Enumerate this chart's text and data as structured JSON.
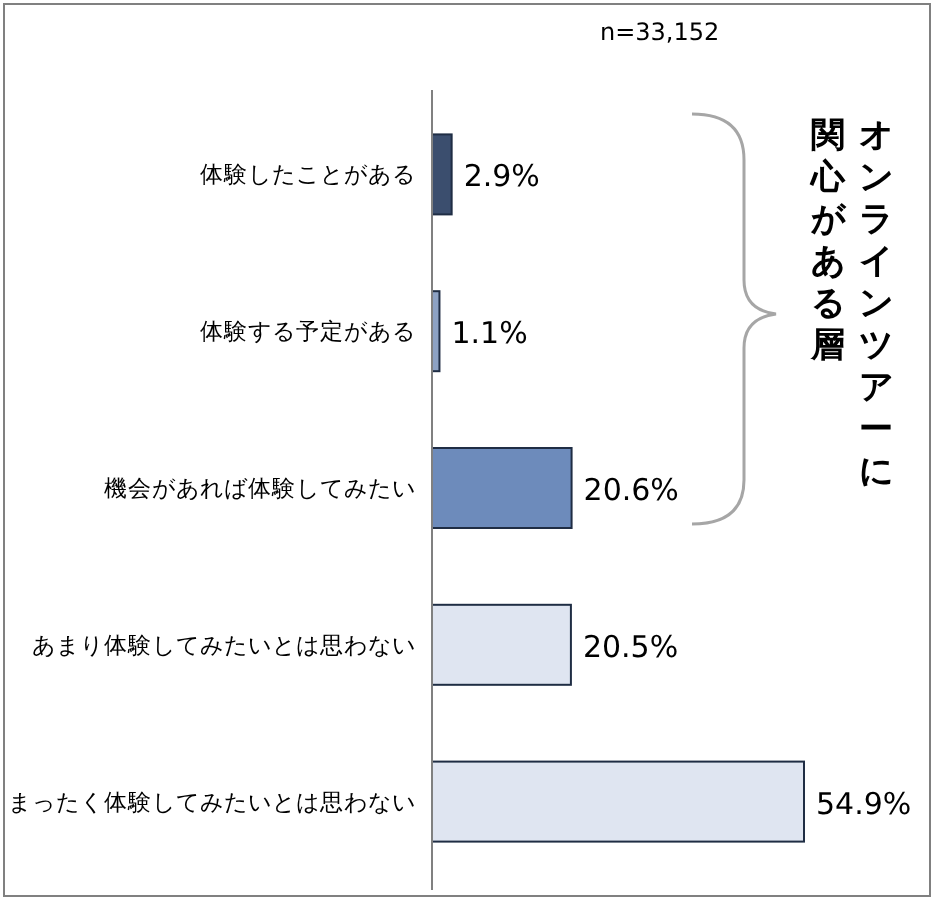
{
  "chart_data": {
    "type": "bar",
    "orientation": "horizontal",
    "categories": [
      "体験したことがある",
      "体験する予定がある",
      "機会があれば体験してみたい",
      "あまり体験してみたいとは思わない",
      "まったく体験してみたいとは思わない"
    ],
    "values": [
      2.9,
      1.1,
      20.6,
      20.5,
      54.9
    ],
    "colors": [
      "#3b4e6e",
      "#8da2c4",
      "#6d8bbb",
      "#dfe5f1",
      "#dfe5f1"
    ],
    "value_labels": [
      "2.9%",
      "1.1%",
      "20.6%",
      "20.5%",
      "54.9%"
    ],
    "annotations": [
      "n=33,152",
      "オンラインツアーに",
      "関心がある層"
    ],
    "grid": false,
    "legend": false
  }
}
